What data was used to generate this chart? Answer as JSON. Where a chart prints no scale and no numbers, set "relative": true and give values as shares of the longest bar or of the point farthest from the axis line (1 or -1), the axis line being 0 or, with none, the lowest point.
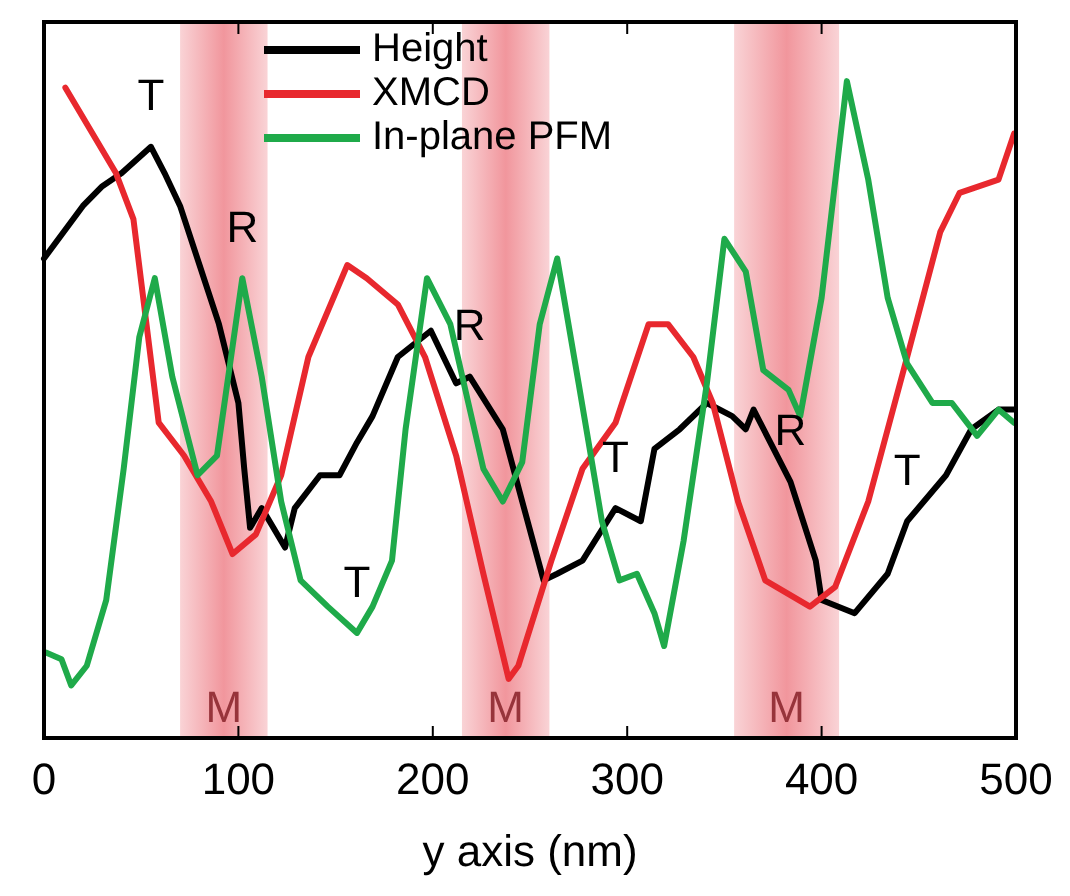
{
  "chart_data": {
    "type": "line",
    "relative": true,
    "xlabel": "y axis (nm)",
    "xlim": [
      0,
      500
    ],
    "xticks": [
      0,
      100,
      200,
      300,
      400,
      500
    ],
    "legend": "top",
    "grid": false,
    "series": [
      {
        "name": "Height",
        "color": "#000000",
        "x": [
          0,
          10,
          20,
          30,
          40,
          55,
          62,
          70,
          80,
          90,
          100,
          103,
          106,
          112,
          118,
          124,
          129,
          142,
          152,
          161,
          169,
          182,
          199,
          212,
          219,
          236,
          246,
          257,
          264,
          277,
          294,
          307,
          314,
          327,
          341,
          354,
          361,
          365,
          384,
          397,
          400,
          417,
          434,
          444,
          464,
          477,
          491,
          499
        ],
        "values": [
          0.73,
          0.77,
          0.81,
          0.84,
          0.86,
          0.9,
          0.86,
          0.81,
          0.72,
          0.63,
          0.51,
          0.41,
          0.32,
          0.35,
          0.32,
          0.29,
          0.35,
          0.4,
          0.4,
          0.45,
          0.49,
          0.58,
          0.62,
          0.54,
          0.55,
          0.47,
          0.36,
          0.24,
          0.25,
          0.27,
          0.35,
          0.33,
          0.44,
          0.47,
          0.51,
          0.49,
          0.47,
          0.5,
          0.39,
          0.27,
          0.21,
          0.19,
          0.25,
          0.33,
          0.4,
          0.47,
          0.5,
          0.5
        ]
      },
      {
        "name": "XMCD",
        "color": "#e8282e",
        "x": [
          11,
          37,
          46,
          59,
          72,
          86,
          97,
          109,
          122,
          136,
          156,
          166,
          182,
          196,
          212,
          226,
          239,
          244,
          261,
          277,
          294,
          311,
          321,
          334,
          344,
          357,
          371,
          394,
          407,
          424,
          444,
          461,
          471,
          491,
          499
        ],
        "values": [
          0.99,
          0.86,
          0.79,
          0.48,
          0.43,
          0.36,
          0.28,
          0.31,
          0.4,
          0.58,
          0.72,
          0.7,
          0.66,
          0.58,
          0.43,
          0.25,
          0.09,
          0.11,
          0.27,
          0.41,
          0.48,
          0.63,
          0.63,
          0.58,
          0.51,
          0.36,
          0.24,
          0.2,
          0.23,
          0.36,
          0.58,
          0.77,
          0.83,
          0.85,
          0.92
        ]
      },
      {
        "name": "In-plane PFM",
        "color": "#1faa4a",
        "x": [
          1,
          9,
          14,
          22,
          32,
          41,
          49,
          57,
          66,
          79,
          89,
          102,
          112,
          122,
          132,
          146,
          161,
          169,
          179,
          186,
          197,
          209,
          226,
          236,
          246,
          255,
          264,
          275,
          287,
          296,
          305,
          314,
          319,
          329,
          341,
          350,
          361,
          370,
          383,
          389,
          400,
          413,
          424,
          434,
          444,
          457,
          467,
          480,
          491,
          499
        ],
        "values": [
          0.13,
          0.12,
          0.08,
          0.11,
          0.21,
          0.41,
          0.61,
          0.7,
          0.55,
          0.4,
          0.43,
          0.7,
          0.55,
          0.36,
          0.24,
          0.2,
          0.16,
          0.2,
          0.27,
          0.47,
          0.7,
          0.63,
          0.41,
          0.36,
          0.42,
          0.63,
          0.73,
          0.54,
          0.33,
          0.24,
          0.25,
          0.19,
          0.14,
          0.3,
          0.54,
          0.76,
          0.71,
          0.56,
          0.53,
          0.49,
          0.67,
          1,
          0.85,
          0.67,
          0.57,
          0.51,
          0.51,
          0.46,
          0.5,
          0.48
        ]
      }
    ],
    "bands": [
      {
        "axis": "x",
        "from": 70,
        "to": 115,
        "label": "M",
        "color": "#e8505b"
      },
      {
        "axis": "x",
        "from": 215,
        "to": 260,
        "label": "M",
        "color": "#e8505b"
      },
      {
        "axis": "x",
        "from": 355,
        "to": 409,
        "label": "M",
        "color": "#e8505b"
      }
    ],
    "annotations": [
      {
        "text": "T",
        "x": 55,
        "y": 0.9
      },
      {
        "text": "R",
        "x": 102,
        "y": 0.7
      },
      {
        "text": "T",
        "x": 161,
        "y": 0.16
      },
      {
        "text": "R",
        "x": 219,
        "y": 0.55
      },
      {
        "text": "T",
        "x": 294,
        "y": 0.35
      },
      {
        "text": "R",
        "x": 384,
        "y": 0.39
      },
      {
        "text": "T",
        "x": 444,
        "y": 0.33
      }
    ]
  }
}
